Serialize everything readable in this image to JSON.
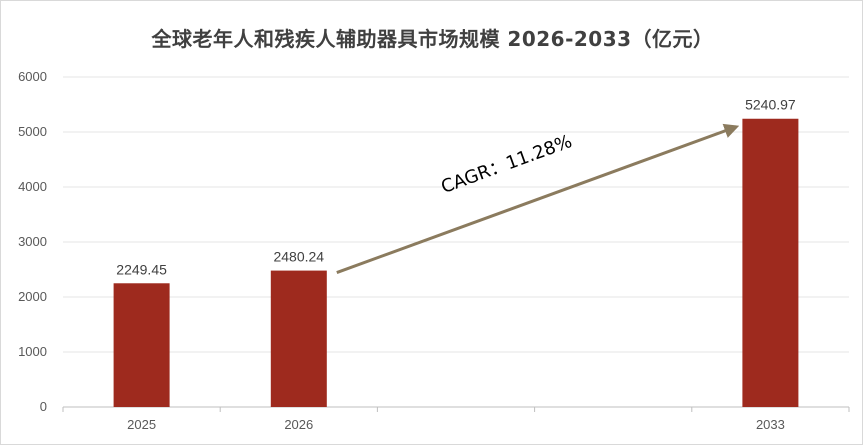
{
  "chart_data": {
    "type": "bar",
    "title": "全球老年人和残疾人辅助器具市场规模 2026-2033（亿元）",
    "xlabel": "",
    "ylabel": "",
    "categories": [
      "2025",
      "2026",
      "",
      "",
      "2033"
    ],
    "values": [
      2249.45,
      2480.24,
      null,
      null,
      5240.97
    ],
    "data_labels": [
      "2249.45",
      "2480.24",
      "",
      "",
      "5240.97"
    ],
    "ylim": [
      0,
      6000
    ],
    "yticks": [
      "0",
      "1000",
      "2000",
      "3000",
      "4000",
      "5000",
      "6000"
    ],
    "grid": true,
    "legend": "none",
    "bar_color": "#9E2A1E",
    "annotation": {
      "text": "CAGR：11.28%",
      "arrow_from": "2026",
      "arrow_to": "2033",
      "arrow_color": "#8B7B5E"
    }
  }
}
